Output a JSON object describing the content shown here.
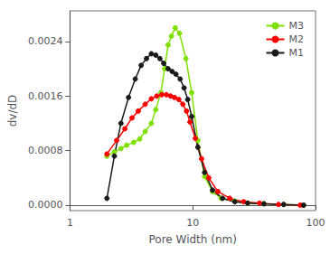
{
  "chart_data": {
    "type": "line",
    "xlabel": "Pore Width (nm)",
    "ylabel": "dv/dD",
    "log": "x",
    "xlim": [
      1,
      100
    ],
    "xticks": [
      1,
      10,
      100
    ],
    "ylim": [
      -8e-05,
      0.00285
    ],
    "yticks": [
      {
        "value": 0,
        "label": "0.0000"
      },
      0.0008,
      0.0016,
      0.0024
    ],
    "grid": false,
    "legend": "upper right",
    "marker": "circle",
    "line_style": "solid",
    "series": [
      {
        "name": "M3",
        "color": "#7FE000",
        "x": [
          2.0,
          2.3,
          2.6,
          2.9,
          3.3,
          3.7,
          4.1,
          4.6,
          5.0,
          5.5,
          5.9,
          6.3,
          6.7,
          7.2,
          7.8,
          8.8,
          9.8,
          11.0,
          12.5,
          14.5,
          17.0,
          22.0,
          28.0,
          38.0,
          55.0,
          80.0
        ],
        "values": [
          0.00072,
          0.00078,
          0.00083,
          0.00088,
          0.00092,
          0.00097,
          0.00108,
          0.0012,
          0.0014,
          0.00165,
          0.002,
          0.00235,
          0.00248,
          0.0026,
          0.00252,
          0.00215,
          0.00165,
          0.00095,
          0.00042,
          0.0002,
          0.0001,
          6e-05,
          3e-05,
          2e-05,
          1e-05,
          0.0
        ]
      },
      {
        "name": "M2",
        "color": "#FF0000",
        "x": [
          2.0,
          2.4,
          2.8,
          3.2,
          3.6,
          4.1,
          4.6,
          5.1,
          5.6,
          6.1,
          6.6,
          7.1,
          7.7,
          8.3,
          8.9,
          9.5,
          10.5,
          11.8,
          13.5,
          16.0,
          20.0,
          26.0,
          35.0,
          50.0,
          75.0
        ],
        "values": [
          0.00075,
          0.00095,
          0.00112,
          0.00128,
          0.00138,
          0.00148,
          0.00156,
          0.0016,
          0.00162,
          0.00162,
          0.0016,
          0.00158,
          0.00155,
          0.00148,
          0.00138,
          0.00122,
          0.00098,
          0.00068,
          0.0004,
          0.0002,
          0.0001,
          5e-05,
          3e-05,
          1e-05,
          0.0
        ]
      },
      {
        "name": "M1",
        "color": "#1a1a1a",
        "x": [
          2.0,
          2.3,
          2.6,
          3.0,
          3.4,
          3.8,
          4.2,
          4.6,
          5.0,
          5.4,
          5.8,
          6.3,
          6.8,
          7.3,
          7.9,
          8.5,
          9.1,
          9.8,
          11.0,
          12.5,
          14.5,
          17.5,
          22.0,
          28.0,
          38.0,
          55.0,
          80.0
        ],
        "values": [
          0.0001,
          0.00072,
          0.0012,
          0.00158,
          0.00185,
          0.00205,
          0.00215,
          0.00222,
          0.0022,
          0.00215,
          0.00208,
          0.002,
          0.00196,
          0.00192,
          0.00185,
          0.00172,
          0.00155,
          0.0013,
          0.00085,
          0.00048,
          0.00022,
          0.0001,
          5e-05,
          3e-05,
          2e-05,
          1e-05,
          0.0
        ]
      }
    ]
  }
}
